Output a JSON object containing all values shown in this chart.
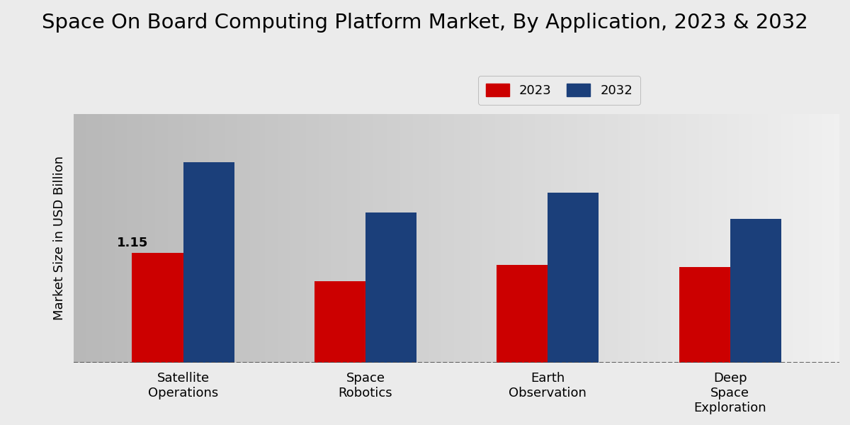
{
  "title": "Space On Board Computing Platform Market, By Application, 2023 & 2032",
  "ylabel": "Market Size in USD Billion",
  "categories": [
    "Satellite\nOperations",
    "Space\nRobotics",
    "Earth\nObservation",
    "Deep\nSpace\nExploration"
  ],
  "values_2023": [
    1.15,
    0.85,
    1.02,
    1.0
  ],
  "values_2032": [
    2.1,
    1.57,
    1.78,
    1.5
  ],
  "color_2023": "#CC0000",
  "color_2032": "#1B3F7A",
  "annotation_value": "1.15",
  "annotation_bar_index": 0,
  "bar_width": 0.28,
  "ylim": [
    0,
    2.6
  ],
  "legend_labels": [
    "2023",
    "2032"
  ],
  "title_fontsize": 21,
  "label_fontsize": 13,
  "tick_fontsize": 13,
  "annotation_fontsize": 13,
  "bg_left": "#c8c8c8",
  "bg_right": "#f0f0f0",
  "fig_bg": "#e8e8e8"
}
